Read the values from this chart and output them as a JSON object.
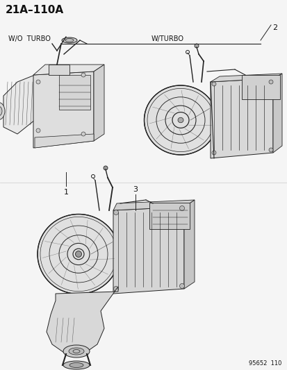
{
  "title": "21A–110A",
  "bg_color": "#f5f5f5",
  "line_color": "#222222",
  "text_color": "#111111",
  "label_wo_turbo": "W/O  TURBO",
  "label_w_turbo": "W/TURBO",
  "part_num_1": "1",
  "part_num_2": "2",
  "part_num_3": "3",
  "diagram_code": "95652  110",
  "title_fontsize": 11,
  "label_fontsize": 7,
  "partnum_fontsize": 8,
  "diagram_code_fontsize": 6
}
